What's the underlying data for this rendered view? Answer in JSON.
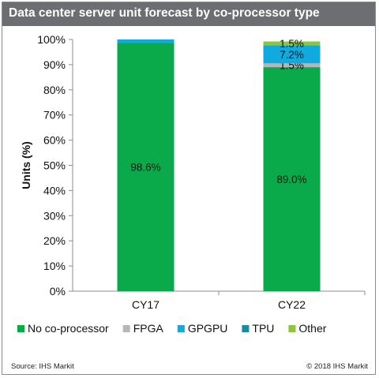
{
  "title": "Data center server unit forecast by co-processor type",
  "footer": {
    "source": "Source:  IHS Markit",
    "copyright": "© 2018  IHS Markit"
  },
  "colors": {
    "No co-processor": "#0aaa4b",
    "FPGA": "#b4b6b8",
    "GPGPU": "#10aadf",
    "TPU": "#1a8a9e",
    "Other": "#8cc63f"
  },
  "chart_data": {
    "type": "bar",
    "stacked": true,
    "categories": [
      "CY17",
      "CY22"
    ],
    "ylabel": "Units (%)",
    "xlabel": "",
    "ylim": [
      0,
      100
    ],
    "y_ticks": [
      "0%",
      "10%",
      "20%",
      "30%",
      "40%",
      "50%",
      "60%",
      "70%",
      "80%",
      "90%",
      "100%"
    ],
    "grid": false,
    "legend_position": "bottom",
    "series": [
      {
        "name": "No co-processor",
        "values": [
          98.6,
          89.0
        ],
        "labels": [
          "98.6%",
          "89.0%"
        ]
      },
      {
        "name": "FPGA",
        "values": [
          0.0,
          1.5
        ],
        "labels": [
          "",
          "1.5%"
        ]
      },
      {
        "name": "GPGPU",
        "values": [
          1.4,
          7.2
        ],
        "labels": [
          "",
          "7.2%"
        ]
      },
      {
        "name": "TPU",
        "values": [
          0.0,
          0.0
        ],
        "labels": [
          "",
          ""
        ]
      },
      {
        "name": "Other",
        "values": [
          0.0,
          1.5
        ],
        "labels": [
          "",
          "1.5%"
        ]
      }
    ]
  }
}
